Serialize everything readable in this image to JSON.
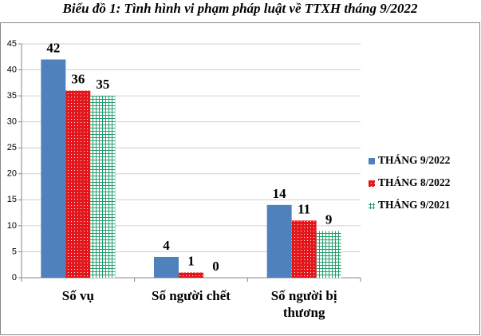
{
  "chart_data": {
    "type": "bar",
    "title": "Biểu đồ 1: Tình hình vi phạm pháp luật về TTXH tháng 9/2022",
    "categories": [
      "Số vụ",
      "Số người chết",
      "Số người bị thương"
    ],
    "series": [
      {
        "name": "THÁNG 9/2022",
        "color": "#4f81bd",
        "pattern": "solid",
        "values": [
          42,
          4,
          14
        ]
      },
      {
        "name": "THÁNG 8/2022",
        "color": "#e3171b",
        "pattern": "dots",
        "values": [
          36,
          1,
          11
        ]
      },
      {
        "name": "THÁNG 9/2021",
        "color": "#1f9e6a",
        "pattern": "grid",
        "values": [
          35,
          0,
          9
        ]
      }
    ],
    "ylim": [
      0,
      45
    ],
    "yticks": [
      0,
      5,
      10,
      15,
      20,
      25,
      30,
      35,
      40,
      45
    ],
    "grid": true,
    "legend": "right"
  }
}
